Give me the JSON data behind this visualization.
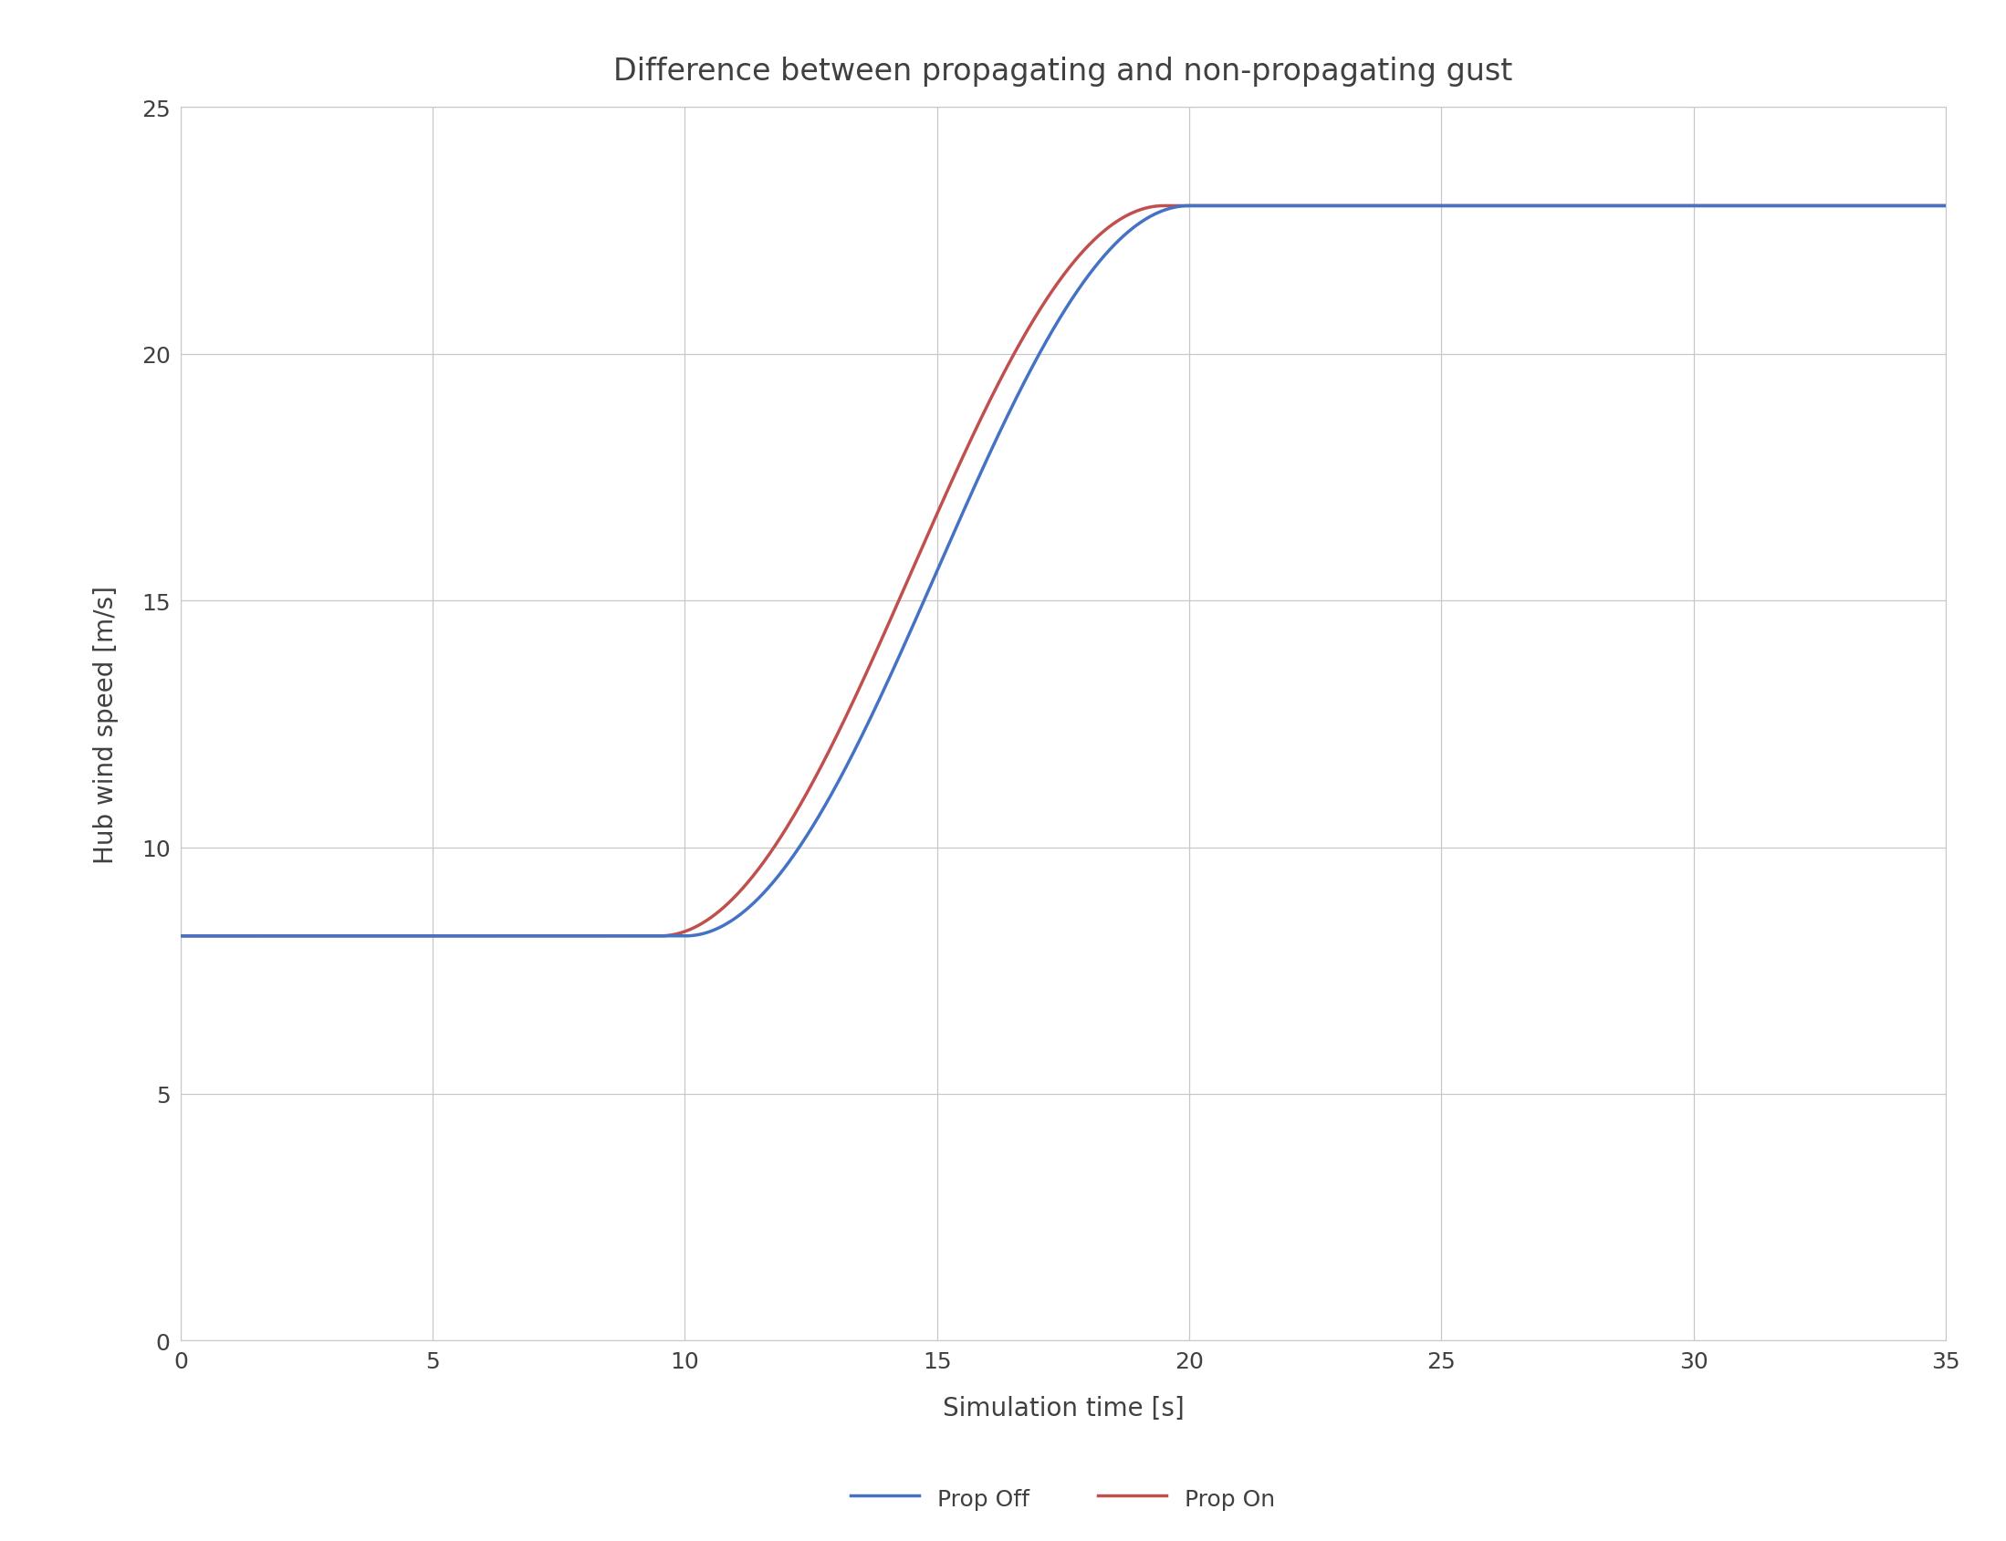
{
  "title": "Difference between propagating and non-propagating gust",
  "xlabel": "Simulation time [s]",
  "ylabel": "Hub wind speed [m/s]",
  "xlim": [
    0,
    35
  ],
  "ylim": [
    0,
    25
  ],
  "xticks": [
    0,
    5,
    10,
    15,
    20,
    25,
    30,
    35
  ],
  "yticks": [
    0,
    5,
    10,
    15,
    20,
    25
  ],
  "title_fontsize": 24,
  "label_fontsize": 20,
  "tick_fontsize": 18,
  "legend_fontsize": 18,
  "line_width": 2.5,
  "prop_off_color": "#4472C4",
  "prop_on_color": "#C0504D",
  "background_color": "#FFFFFF",
  "grid_color": "#C8C8C8",
  "v_start": 8.2,
  "v_end": 23.0,
  "t_start_off": 10.0,
  "t_end_off": 20.0,
  "t_start_on": 9.5,
  "t_end_on": 19.5,
  "legend_labels": [
    "Prop Off",
    "Prop On"
  ]
}
